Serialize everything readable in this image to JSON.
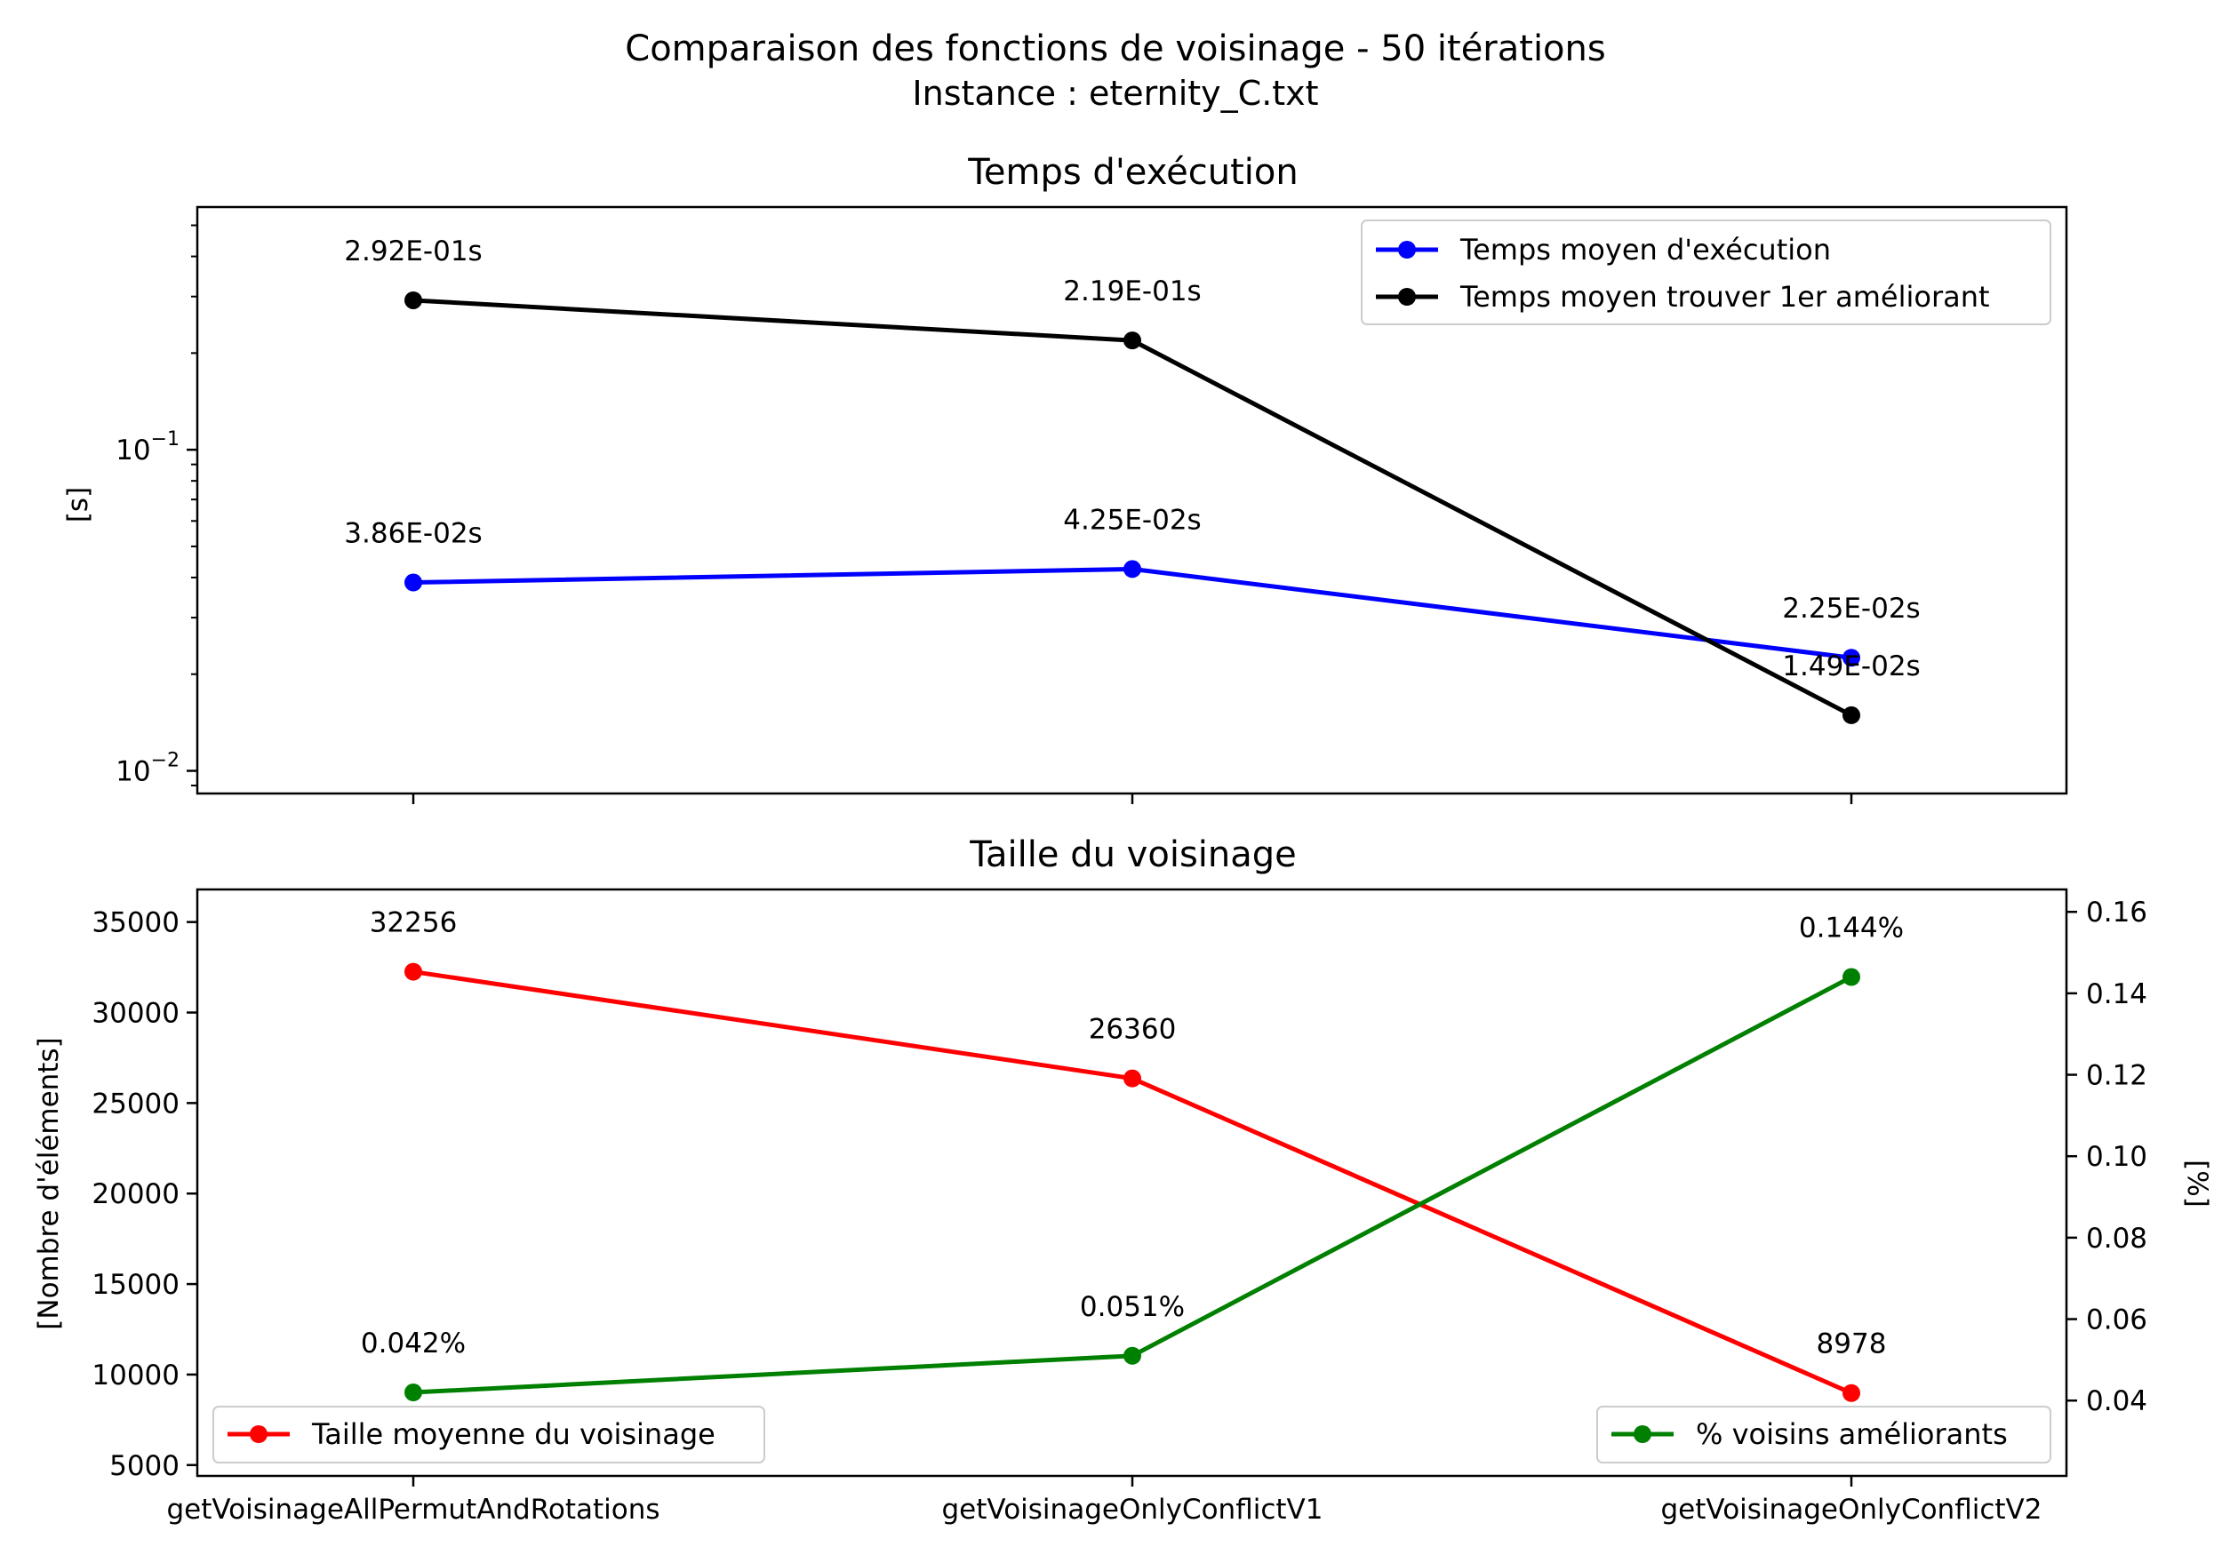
{
  "chart_data": {
    "title": "Comparaison des fonctions de voisinage - 50 itérations",
    "subtitle": "Instance : eternity_C.txt",
    "categories": [
      "getVoisinageAllPermutAndRotations",
      "getVoisinageOnlyConflictV1",
      "getVoisinageOnlyConflictV2"
    ],
    "charts": [
      {
        "type": "line",
        "title": "Temps d'exécution",
        "ylabel": "[s]",
        "yscale": "log",
        "ylim": [
          0.0085,
          0.57
        ],
        "yticks": [
          {
            "value": 0.1,
            "base": "10",
            "exp": "−1"
          },
          {
            "value": 0.01,
            "base": "10",
            "exp": "−2"
          }
        ],
        "legend_position": "upper right",
        "series": [
          {
            "name": "Temps moyen d'exécution",
            "color": "#0000ff",
            "values": [
              0.0386,
              0.0425,
              0.0225
            ],
            "labels": [
              "3.86E-02s",
              "4.25E-02s",
              "2.25E-02s"
            ]
          },
          {
            "name": "Temps moyen trouver 1er améliorant",
            "color": "#000000",
            "values": [
              0.292,
              0.219,
              0.0149
            ],
            "labels": [
              "2.92E-01s",
              "2.19E-01s",
              "1.49E-02s"
            ]
          }
        ]
      },
      {
        "type": "line",
        "title": "Taille du voisinage",
        "ylabel": "[Nombre d'éléments]",
        "ylim": [
          4400,
          36800
        ],
        "yticks": [
          "5000",
          "10000",
          "15000",
          "20000",
          "25000",
          "30000",
          "35000"
        ],
        "y2label": "[%]",
        "y2lim": [
          0.0215,
          0.1655
        ],
        "y2ticks": [
          "0.04",
          "0.06",
          "0.08",
          "0.10",
          "0.12",
          "0.14",
          "0.16"
        ],
        "series": [
          {
            "name": "Taille moyenne du voisinage",
            "axis": "left",
            "color": "#ff0000",
            "legend_position": "lower left",
            "values": [
              32256,
              26360,
              8978
            ],
            "labels": [
              "32256",
              "26360",
              "8978"
            ]
          },
          {
            "name": "% voisins améliorants",
            "axis": "right",
            "color": "#008000",
            "legend_position": "lower right",
            "values": [
              0.042,
              0.051,
              0.144
            ],
            "labels": [
              "0.042%",
              "0.051%",
              "0.144%"
            ]
          }
        ]
      }
    ]
  }
}
